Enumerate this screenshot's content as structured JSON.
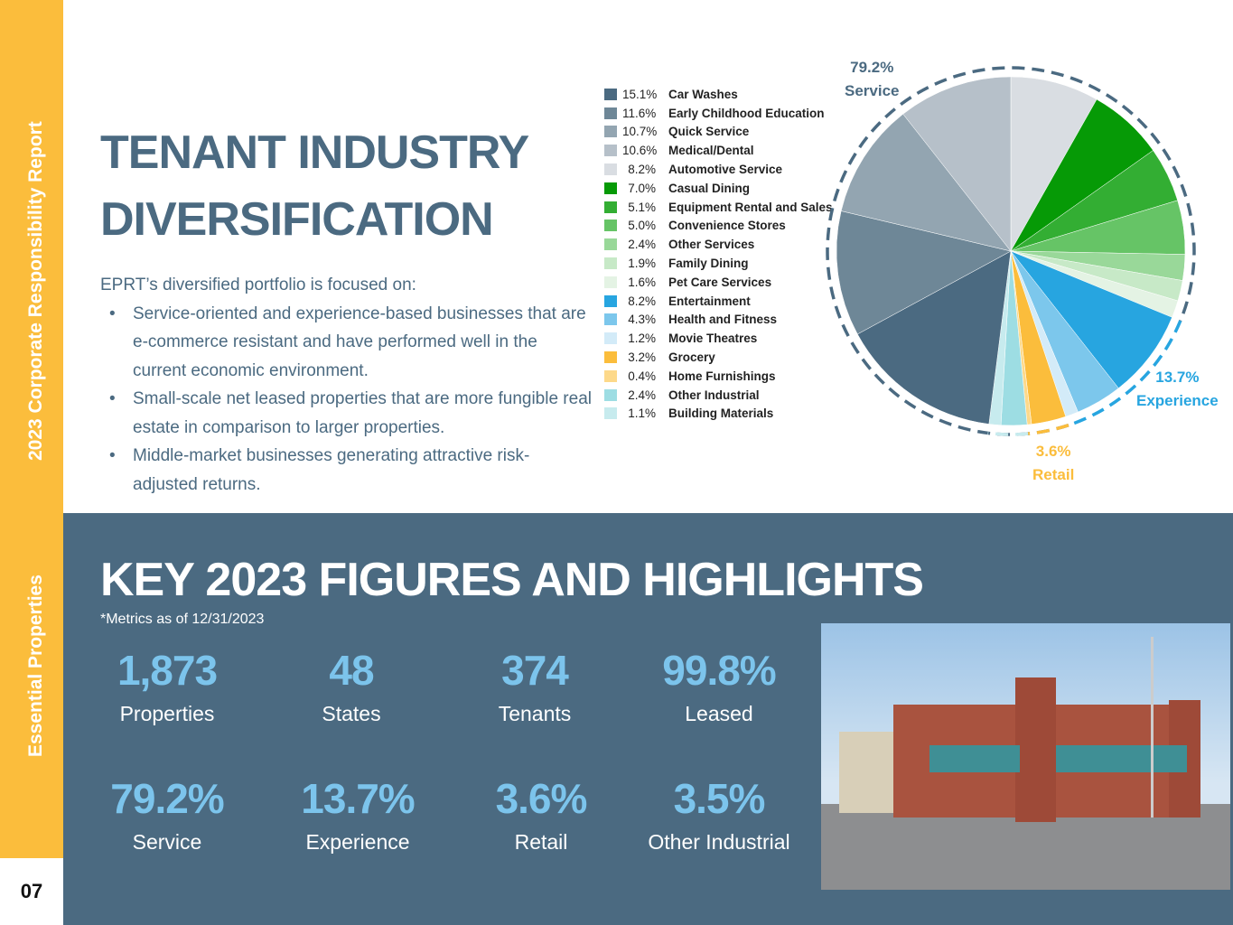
{
  "sidebar": {
    "report": "2023 Corporate Responsibility Report",
    "company": "Essential Properties",
    "page": "07"
  },
  "title": {
    "line1": "TENANT INDUSTRY",
    "line2": "DIVERSIFICATION"
  },
  "intro": {
    "lead": "EPRT’s diversified portfolio is focused on:",
    "bullets": [
      "Service-oriented and experience-based businesses that are e-commerce resistant and have performed well in the current economic environment.",
      "Small-scale net leased properties that are more fungible real estate in comparison to larger properties.",
      "Middle-market businesses generating attractive risk-adjusted returns."
    ]
  },
  "chart_data": {
    "type": "pie",
    "legend_position": "left",
    "slices": [
      {
        "label": "Car Washes",
        "value": 15.1,
        "pct": "15.1%",
        "color": "#4b6a81"
      },
      {
        "label": "Early Childhood Education",
        "value": 11.6,
        "pct": "11.6%",
        "color": "#6e8797"
      },
      {
        "label": "Quick Service",
        "value": 10.7,
        "pct": "10.7%",
        "color": "#93a5b1"
      },
      {
        "label": "Medical/Dental",
        "value": 10.6,
        "pct": "10.6%",
        "color": "#b6c0c9"
      },
      {
        "label": "Automotive Service",
        "value": 8.2,
        "pct": "8.2%",
        "color": "#d9dde2"
      },
      {
        "label": "Casual Dining",
        "value": 7.0,
        "pct": "7.0%",
        "color": "#069a06"
      },
      {
        "label": "Equipment Rental and Sales",
        "value": 5.1,
        "pct": "5.1%",
        "color": "#33ae33"
      },
      {
        "label": "Convenience Stores",
        "value": 5.0,
        "pct": "5.0%",
        "color": "#66c466"
      },
      {
        "label": "Other Services",
        "value": 2.4,
        "pct": "2.4%",
        "color": "#99d899"
      },
      {
        "label": "Family Dining",
        "value": 1.9,
        "pct": "1.9%",
        "color": "#c7e9c7"
      },
      {
        "label": "Pet Care Services",
        "value": 1.6,
        "pct": "1.6%",
        "color": "#e4f3e4"
      },
      {
        "label": "Entertainment",
        "value": 8.2,
        "pct": "8.2%",
        "color": "#27a5e0"
      },
      {
        "label": "Health and Fitness",
        "value": 4.3,
        "pct": "4.3%",
        "color": "#7cc7ec"
      },
      {
        "label": "Movie Theatres",
        "value": 1.2,
        "pct": "1.2%",
        "color": "#d3ebf8"
      },
      {
        "label": "Grocery",
        "value": 3.2,
        "pct": "3.2%",
        "color": "#fbbd3c"
      },
      {
        "label": "Home Furnishings",
        "value": 0.4,
        "pct": "0.4%",
        "color": "#fdd98a"
      },
      {
        "label": "Other Industrial",
        "value": 2.4,
        "pct": "2.4%",
        "color": "#9ddde3"
      },
      {
        "label": "Building Materials",
        "value": 1.1,
        "pct": "1.1%",
        "color": "#c7ebee"
      }
    ],
    "groups": [
      {
        "label": "Service",
        "pct": "79.2%",
        "color": "#4b6a81"
      },
      {
        "label": "Experience",
        "pct": "13.7%",
        "color": "#27a5e0"
      },
      {
        "label": "Retail",
        "pct": "3.6%",
        "color": "#fbbd3c"
      }
    ]
  },
  "key": {
    "title": "KEY 2023 FIGURES AND HIGHLIGHTS",
    "note": "*Metrics as of 12/31/2023",
    "stats": [
      {
        "value": "1,873",
        "label": "Properties"
      },
      {
        "value": "48",
        "label": "States"
      },
      {
        "value": "374",
        "label": "Tenants"
      },
      {
        "value": "99.8%",
        "label": "Leased"
      },
      {
        "value": "79.2%",
        "label": "Service"
      },
      {
        "value": "13.7%",
        "label": "Experience"
      },
      {
        "value": "3.6%",
        "label": "Retail"
      },
      {
        "value": "3.5%",
        "label": "Other Industrial"
      }
    ]
  }
}
